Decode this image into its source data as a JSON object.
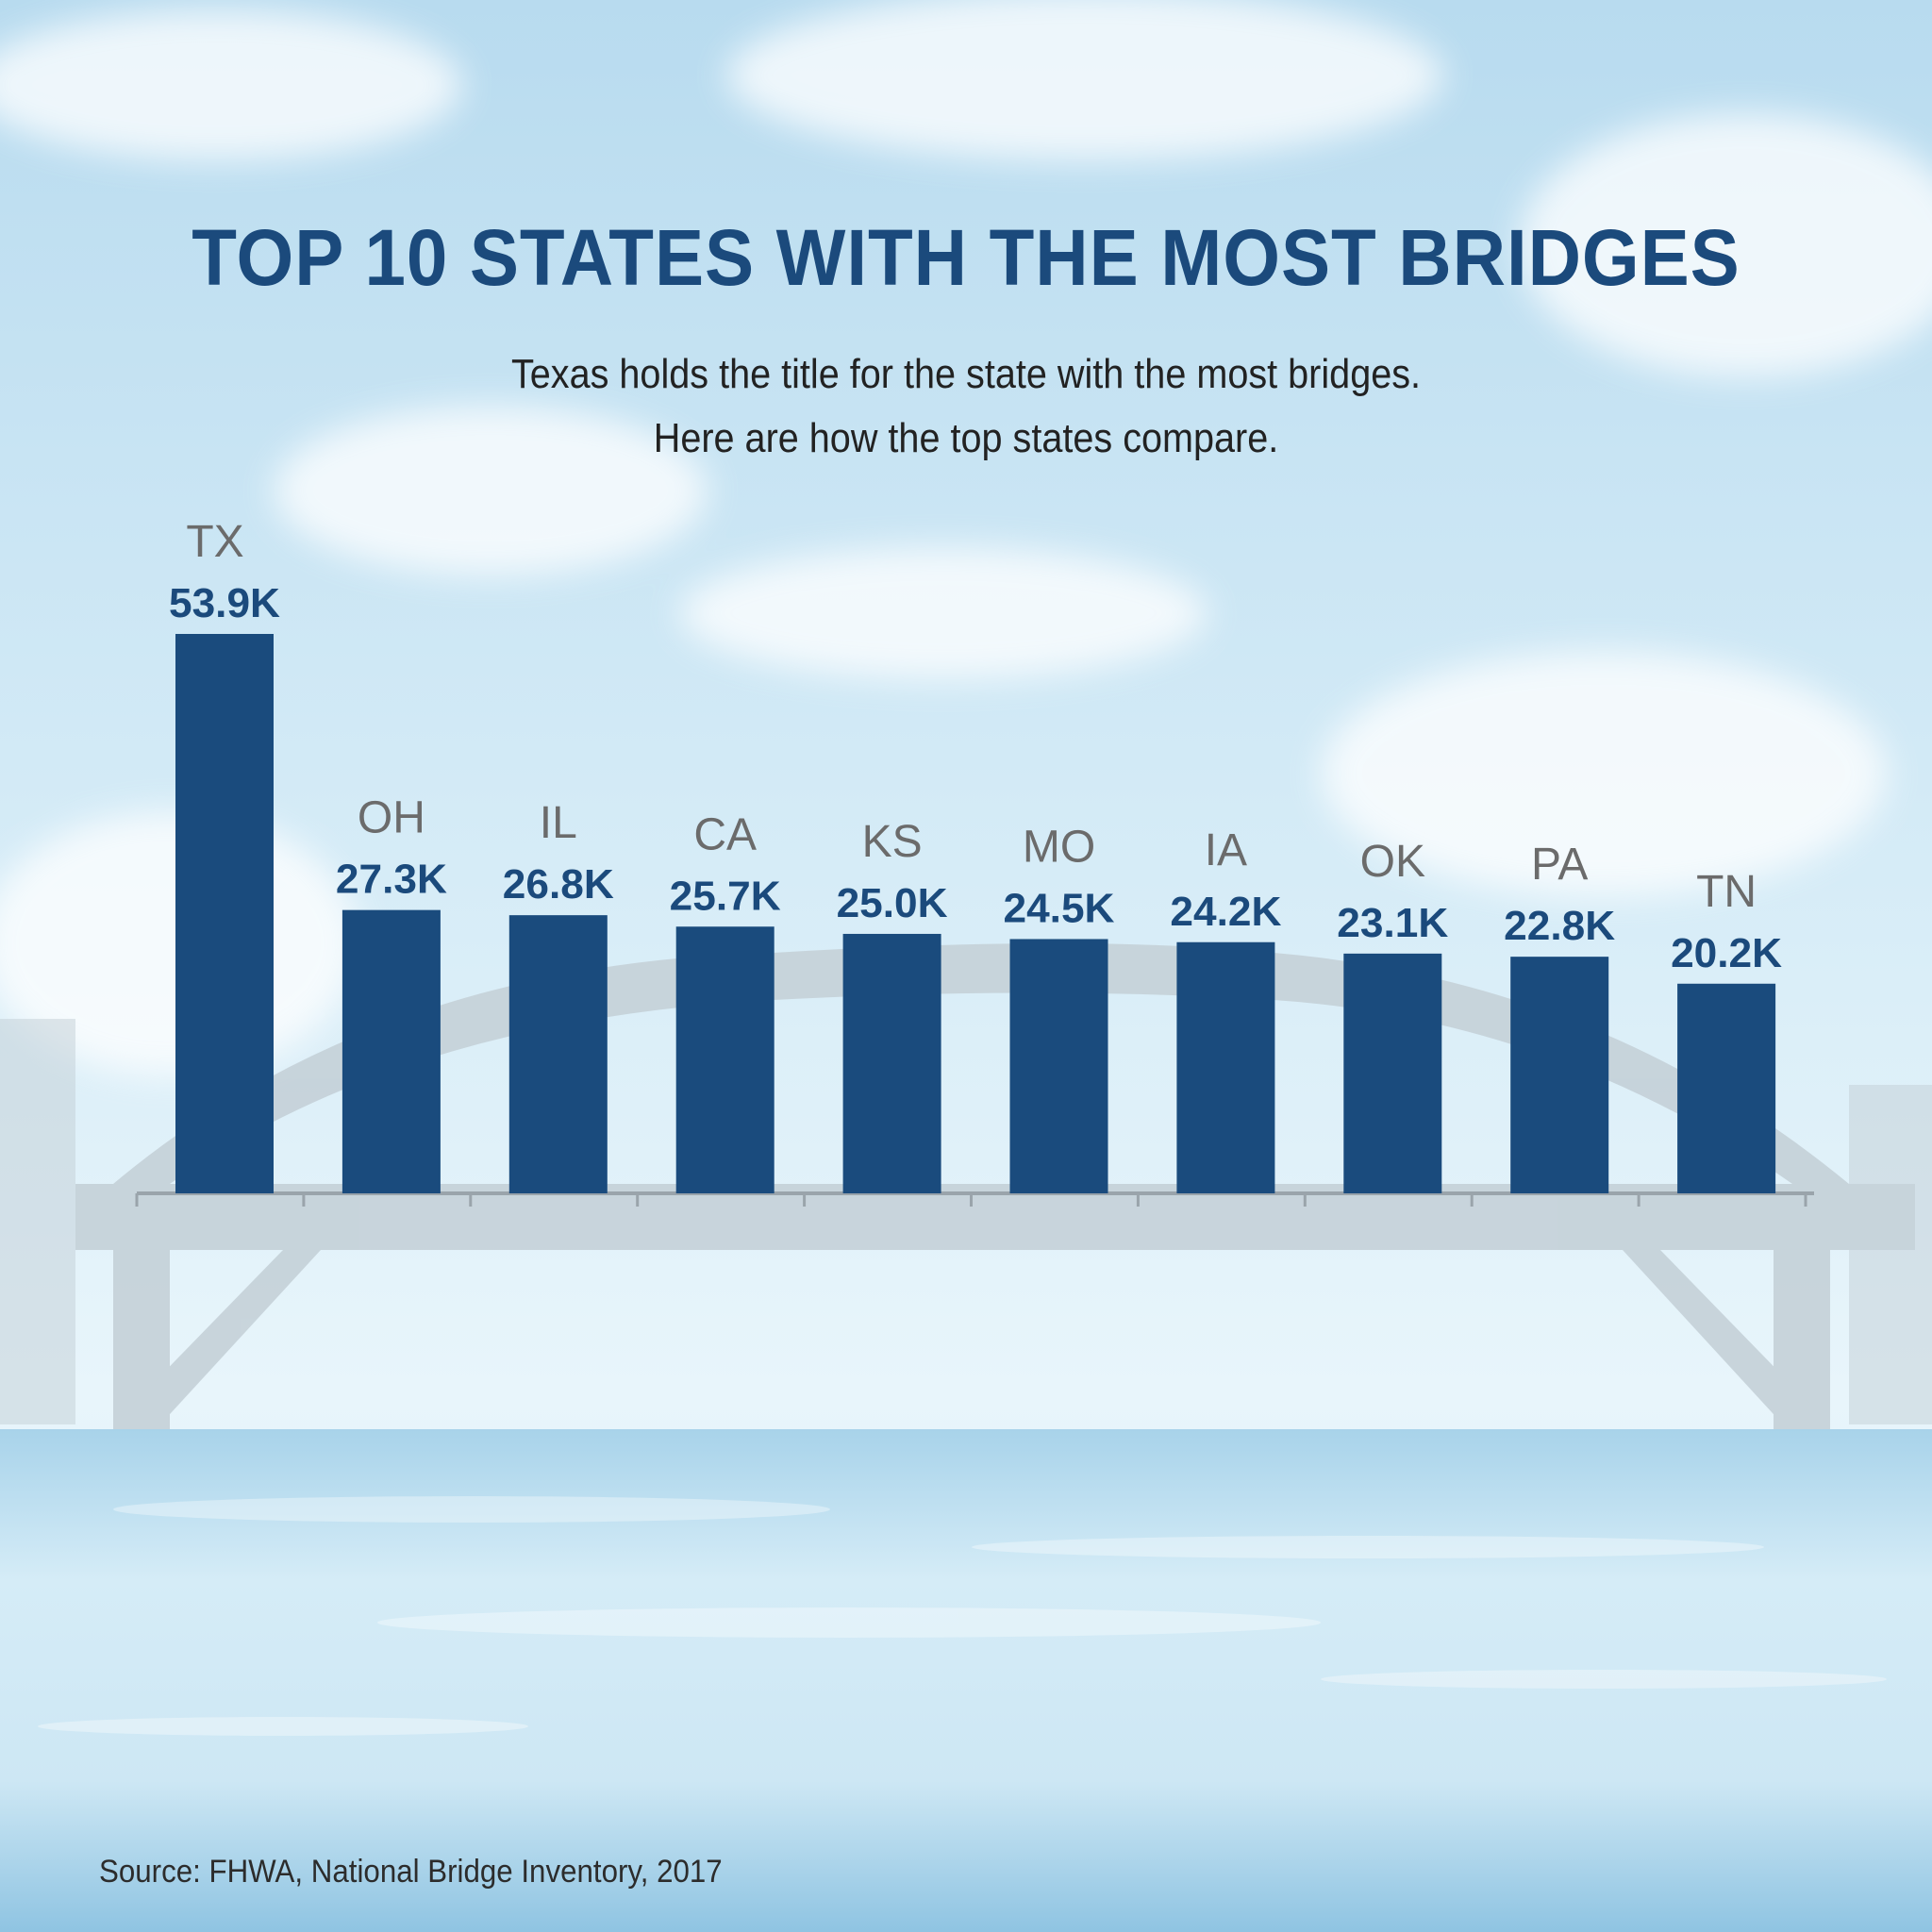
{
  "title": "TOP 10 STATES WITH THE MOST BRIDGES",
  "subtitle_lines": [
    "Texas holds the title for the state with the most bridges.",
    "Here are how the top states compare."
  ],
  "source": "Source: FHWA, National Bridge Inventory, 2017",
  "colors": {
    "bar": "#1a4b7d",
    "title": "#1b4a7c",
    "state_label": "#6b6b6b",
    "sky_top": "#b9dcef",
    "water": "#9fcde6"
  },
  "chart_data": {
    "type": "bar",
    "categories": [
      "TX",
      "OH",
      "IL",
      "CA",
      "KS",
      "MO",
      "IA",
      "OK",
      "PA",
      "TN"
    ],
    "values": [
      53.9,
      27.3,
      26.8,
      25.7,
      25.0,
      24.5,
      24.2,
      23.1,
      22.8,
      20.2
    ],
    "value_labels": [
      "53.9K",
      "27.3K",
      "26.8K",
      "25.7K",
      "25.0K",
      "24.5K",
      "24.2K",
      "23.1K",
      "22.8K",
      "20.2K"
    ],
    "title": "TOP 10 STATES WITH THE MOST BRIDGES",
    "xlabel": "",
    "ylabel": "",
    "ylim": [
      0,
      53.9
    ],
    "grid": false,
    "legend": "none"
  }
}
